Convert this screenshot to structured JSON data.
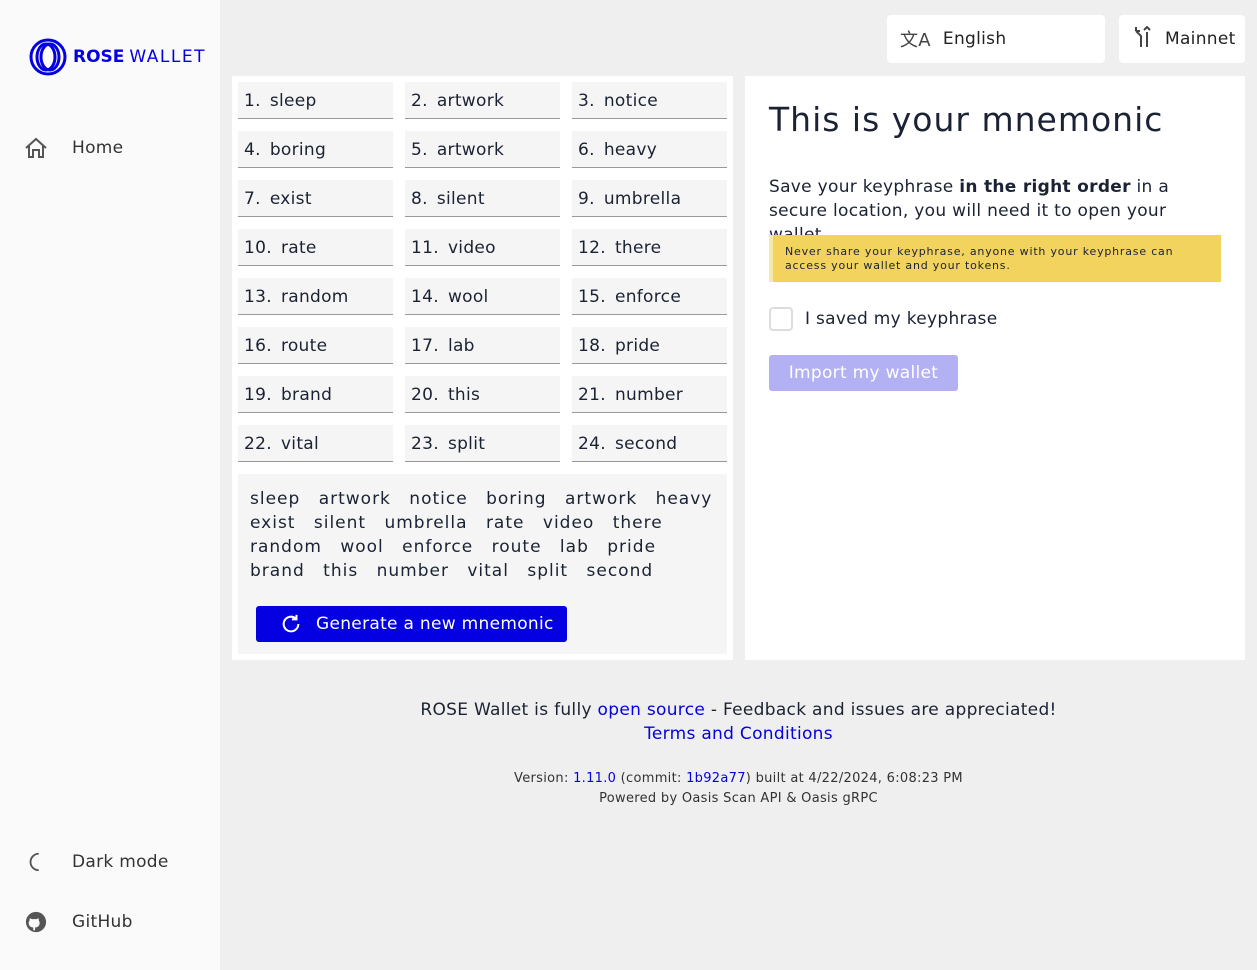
{
  "brand": {
    "bold": "ROSE",
    "light": "WALLET"
  },
  "sidebar": {
    "items": [
      {
        "label": "Home",
        "icon": "home-icon"
      },
      {
        "label": "Dark mode",
        "icon": "moon-icon"
      },
      {
        "label": "GitHub",
        "icon": "github-icon"
      }
    ]
  },
  "topbar": {
    "language": "English",
    "network": "Mainnet"
  },
  "mnemonic": {
    "words": [
      "sleep",
      "artwork",
      "notice",
      "boring",
      "artwork",
      "heavy",
      "exist",
      "silent",
      "umbrella",
      "rate",
      "video",
      "there",
      "random",
      "wool",
      "enforce",
      "route",
      "lab",
      "pride",
      "brand",
      "this",
      "number",
      "vital",
      "split",
      "second"
    ],
    "phrase": "sleep artwork notice boring artwork heavy exist silent umbrella rate video there random wool enforce route lab pride brand this number vital split second",
    "generate_label": "Generate a new mnemonic"
  },
  "info": {
    "title": "This is your mnemonic",
    "desc_pre": "Save your keyphrase ",
    "desc_bold": "in the right order",
    "desc_post": " in a secure location, you will need it to open your wallet.",
    "warning": "Never share your keyphrase, anyone with your keyphrase can access your wallet and your tokens.",
    "checkbox_label": "I saved my keyphrase",
    "checked": false,
    "import_label": "Import my wallet"
  },
  "footer": {
    "pre": "ROSE Wallet is fully ",
    "link": "open source",
    "post": " - Feedback and issues are appreciated!",
    "terms": "Terms and Conditions",
    "version_pre": "Version: ",
    "version": "1.11.0",
    "commit_pre": " (commit: ",
    "commit": "1b92a77",
    "built": ") built at 4/22/2024, 6:08:23 PM",
    "powered": "Powered by Oasis Scan API & Oasis gRPC"
  },
  "colors": {
    "accent": "#0500e1",
    "warning": "#f2d35e"
  }
}
